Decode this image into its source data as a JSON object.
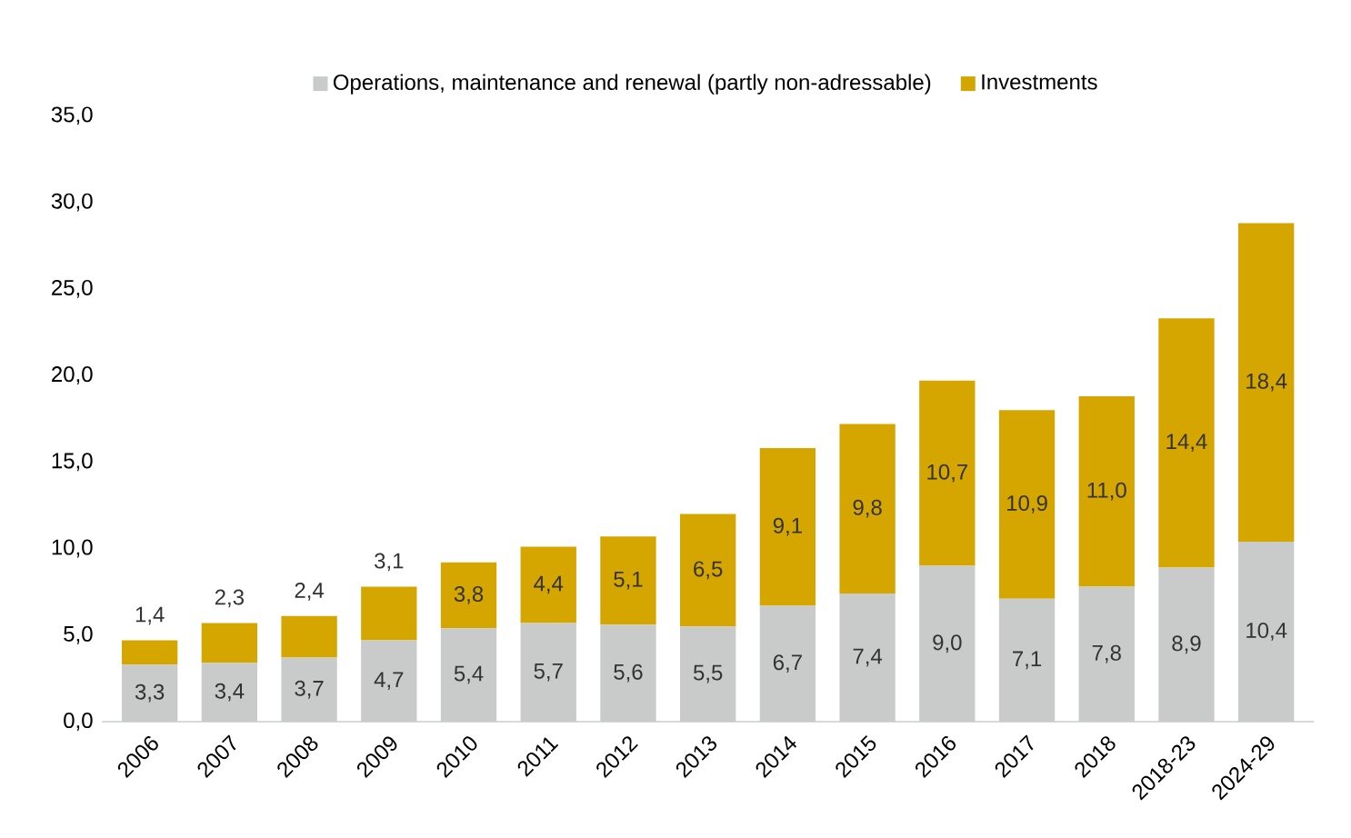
{
  "chart_data": {
    "type": "bar",
    "stacked": true,
    "categories": [
      "2006",
      "2007",
      "2008",
      "2009",
      "2010",
      "2011",
      "2012",
      "2013",
      "2014",
      "2015",
      "2016",
      "2017",
      "2018",
      "2018-23",
      "2024-29"
    ],
    "series": [
      {
        "name": "Operations,  maintenance and renewal (partly non-adressable)",
        "color": "#c9cbcb",
        "values": [
          3.3,
          3.4,
          3.7,
          4.7,
          5.4,
          5.7,
          5.6,
          5.5,
          6.7,
          7.4,
          9.0,
          7.1,
          7.8,
          8.9,
          10.4
        ],
        "value_labels": [
          "3,3",
          "3,4",
          "3,7",
          "4,7",
          "5,4",
          "5,7",
          "5,6",
          "5,5",
          "6,7",
          "7,4",
          "9,0",
          "7,1",
          "7,8",
          "8,9",
          "10,4"
        ]
      },
      {
        "name": "Investments",
        "color": "#d5a500",
        "values": [
          1.4,
          2.3,
          2.4,
          3.1,
          3.8,
          4.4,
          5.1,
          6.5,
          9.1,
          9.8,
          10.7,
          10.9,
          11.0,
          14.4,
          18.4
        ],
        "value_labels": [
          "1,4",
          "2,3",
          "2,4",
          "3,1",
          "3,8",
          "4,4",
          "5,1",
          "6,5",
          "9,1",
          "9,8",
          "10,7",
          "10,9",
          "11,0",
          "14,4",
          "18,4"
        ]
      }
    ],
    "ylim": [
      0,
      35
    ],
    "yticks": [
      {
        "value": 0,
        "label": "0,0"
      },
      {
        "value": 5,
        "label": "5,0"
      },
      {
        "value": 10,
        "label": "10,0"
      },
      {
        "value": 15,
        "label": "15,0"
      },
      {
        "value": 20,
        "label": "20,0"
      },
      {
        "value": 25,
        "label": "25,0"
      },
      {
        "value": 30,
        "label": "30,0"
      },
      {
        "value": 35,
        "label": "35,0"
      }
    ],
    "grid": false,
    "legend": "top"
  }
}
